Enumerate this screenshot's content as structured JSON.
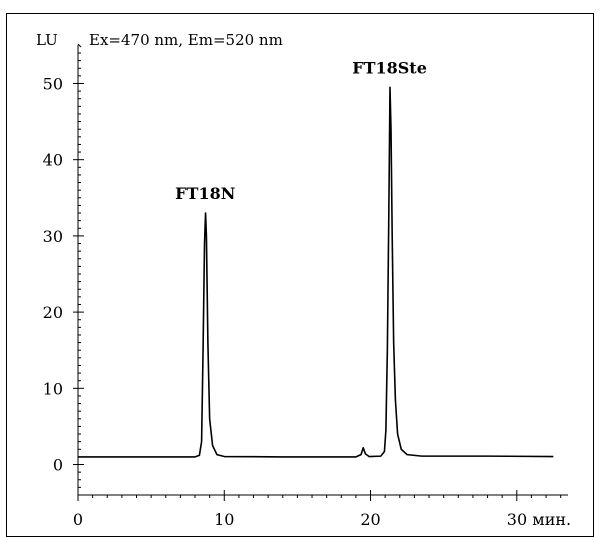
{
  "chart_data": {
    "type": "line",
    "title": "",
    "ylabel": "LU",
    "subtitle": "Ex=470 nm, Em=520 nm",
    "xunit": "мин.",
    "xlim": [
      0,
      33.5
    ],
    "ylim": [
      -4,
      54
    ],
    "x_ticks": [
      {
        "value": 0,
        "label": "0"
      },
      {
        "value": 10,
        "label": "10"
      },
      {
        "value": 20,
        "label": "20"
      },
      {
        "value": 30,
        "label": "30 мин."
      }
    ],
    "y_ticks": [
      {
        "value": 0,
        "label": "0"
      },
      {
        "value": 10,
        "label": "10"
      },
      {
        "value": 20,
        "label": "20"
      },
      {
        "value": 30,
        "label": "30"
      },
      {
        "value": 40,
        "label": "40"
      },
      {
        "value": 50,
        "label": "50"
      }
    ],
    "series": [
      {
        "name": "",
        "color": "#000000",
        "points": [
          [
            0.0,
            1.0
          ],
          [
            8.0,
            1.0
          ],
          [
            8.3,
            1.2
          ],
          [
            8.45,
            3.0
          ],
          [
            8.55,
            15.0
          ],
          [
            8.65,
            29.0
          ],
          [
            8.72,
            33.0
          ],
          [
            8.78,
            30.0
          ],
          [
            8.88,
            16.0
          ],
          [
            9.0,
            6.0
          ],
          [
            9.2,
            2.5
          ],
          [
            9.5,
            1.3
          ],
          [
            10.0,
            1.05
          ],
          [
            14.0,
            1.0
          ],
          [
            19.0,
            1.0
          ],
          [
            19.35,
            1.3
          ],
          [
            19.5,
            2.2
          ],
          [
            19.65,
            1.4
          ],
          [
            19.9,
            1.05
          ],
          [
            20.7,
            1.1
          ],
          [
            20.95,
            1.7
          ],
          [
            21.05,
            4.5
          ],
          [
            21.15,
            15.0
          ],
          [
            21.25,
            33.0
          ],
          [
            21.33,
            49.5
          ],
          [
            21.4,
            44.0
          ],
          [
            21.48,
            30.0
          ],
          [
            21.58,
            16.0
          ],
          [
            21.7,
            8.5
          ],
          [
            21.85,
            4.0
          ],
          [
            22.1,
            2.0
          ],
          [
            22.5,
            1.3
          ],
          [
            23.5,
            1.1
          ],
          [
            28.0,
            1.1
          ],
          [
            32.5,
            1.05
          ]
        ]
      }
    ],
    "annotations": [
      {
        "text": "FT18N",
        "x": 8.7,
        "y": 33.0
      },
      {
        "text": "FT18Ste",
        "x": 21.3,
        "y": 49.5
      }
    ],
    "grid": false
  }
}
